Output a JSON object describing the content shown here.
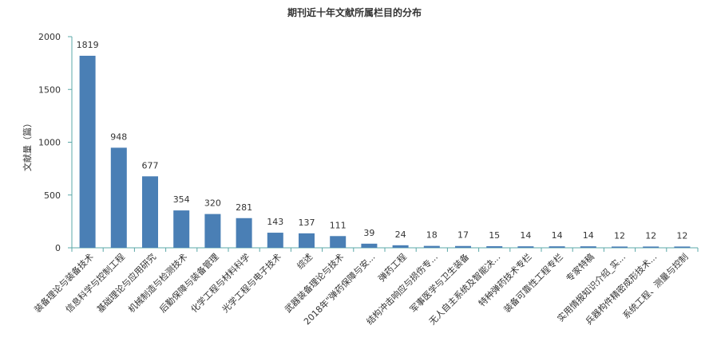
{
  "chart_data": {
    "type": "bar",
    "title": "期刊近十年文献所属栏目的分布",
    "ylabel": "文献量（篇）",
    "xlabel": "",
    "ylim": [
      0,
      2000
    ],
    "yticks": [
      0,
      500,
      1000,
      1500,
      2000
    ],
    "grid": false,
    "bar_color": "#4a7fb5",
    "categories": [
      "装备理论与装备技术",
      "信息科学与控制工程",
      "基础理论与应用研究",
      "机械制造与检测技术",
      "后勤保障与装备管理",
      "化学工程与材料科学",
      "光学工程与电子技术",
      "综述",
      "武器装备理论与技术",
      "2018年\"弹药保障与安...",
      "弹药工程",
      "结构冲击响应与损伤专...",
      "军事医学与卫生装备",
      "无人自主系统及智能决...",
      "特种弹药技术专栏",
      "装备可靠性工程专栏",
      "专家特稿",
      "实用情报知识介绍_实...",
      "兵器构件精密成形技术...",
      "系统工程、测量与控制"
    ],
    "values": [
      1819,
      948,
      677,
      354,
      320,
      281,
      143,
      137,
      111,
      39,
      24,
      18,
      17,
      15,
      14,
      14,
      14,
      12,
      12,
      12
    ]
  }
}
